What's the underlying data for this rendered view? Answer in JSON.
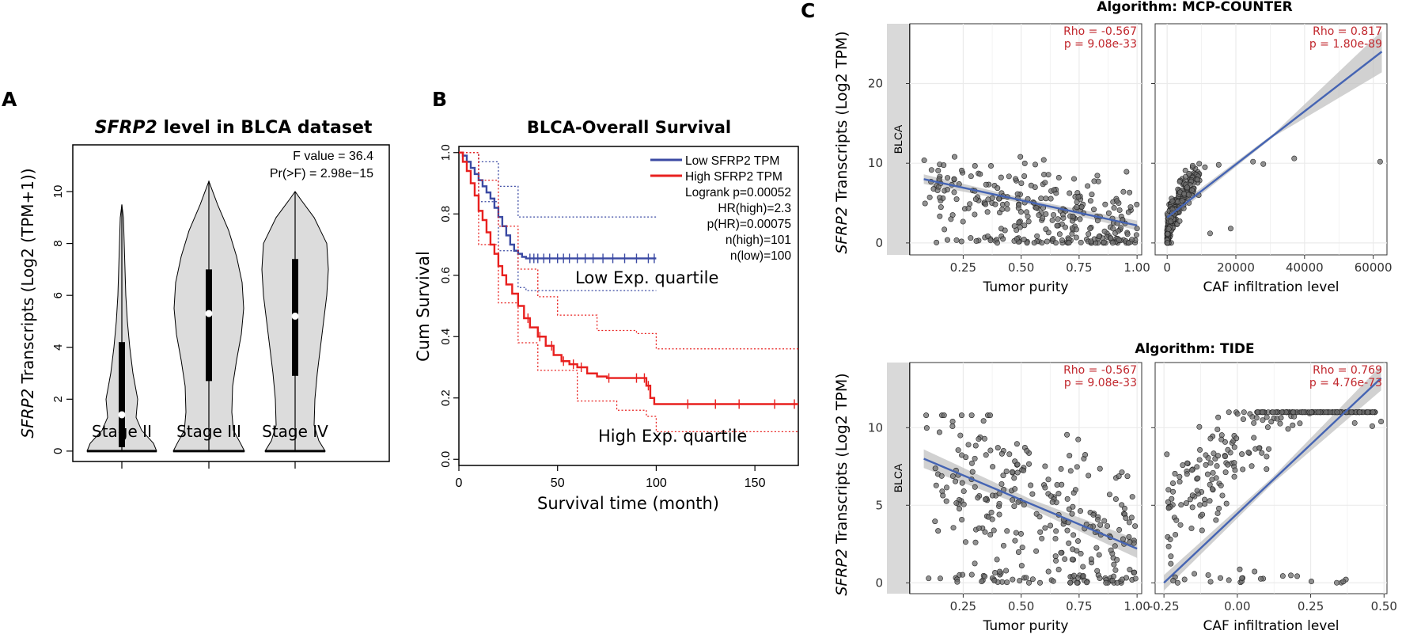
{
  "panel_labels": {
    "a": "A",
    "b": "B",
    "c": "C"
  },
  "colors": {
    "low": "#3b4aa3",
    "high": "#e8201f",
    "fit": "#4564b3",
    "stat": "#c1272d",
    "violin": "#dcdcdc",
    "grid": "#ebebeb",
    "strip": "#d9d9d9",
    "point": "#6e6e6e"
  },
  "chart_data": [
    {
      "id": "A",
      "type": "violin",
      "title_italic": "SFRP2",
      "title_rest": " level in BLCA dataset",
      "ylabel_italic": "SFRP2",
      "ylabel_rest": " Transcripts (Log2 (TPM+1))",
      "categories": [
        "Stage II",
        "Stage III",
        "Stage IV"
      ],
      "medians": [
        1.4,
        5.3,
        5.2
      ],
      "q1": [
        0.15,
        2.7,
        2.9
      ],
      "q3": [
        4.2,
        7.0,
        7.4
      ],
      "max": [
        9.5,
        10.4,
        10.0
      ],
      "min": [
        0,
        0,
        0
      ],
      "ylim": [
        -0.4,
        11.8
      ],
      "yticks": [
        0,
        2,
        4,
        6,
        8,
        10
      ],
      "stats": [
        "F value = 36.4",
        "Pr(>F) = 2.98e−15"
      ]
    },
    {
      "id": "B",
      "type": "line",
      "title": "BLCA-Overall Survival",
      "xlabel": "Survival time (month)",
      "ylabel": "Cum Survival",
      "xlim": [
        0,
        172
      ],
      "ylim": [
        -0.02,
        1.02
      ],
      "xticks": [
        0,
        50,
        100,
        150
      ],
      "yticks": [
        "0.0",
        "0.2",
        "0.4",
        "0.6",
        "0.8",
        "1.0"
      ],
      "legend": [
        "Low SFRP2 TPM",
        "High SFRP2 TPM"
      ],
      "stats": [
        "Logrank p=0.00052",
        "HR(high)=2.3",
        "p(HR)=0.00075",
        "n(high)=101",
        "n(low)=100"
      ],
      "annotations": [
        "Low Exp. quartile",
        "High Exp. quartile"
      ],
      "series": [
        {
          "name": "Low SFRP2 TPM",
          "x": [
            0,
            2,
            4,
            6,
            8,
            10,
            12,
            14,
            16,
            18,
            20,
            22,
            24,
            26,
            28,
            30,
            32,
            34,
            100
          ],
          "y": [
            1.0,
            0.99,
            0.97,
            0.95,
            0.93,
            0.91,
            0.89,
            0.87,
            0.85,
            0.82,
            0.79,
            0.76,
            0.73,
            0.7,
            0.68,
            0.67,
            0.66,
            0.655,
            0.655
          ],
          "ci_upper": [
            [
              0,
              1.0
            ],
            [
              10,
              0.97
            ],
            [
              20,
              0.89
            ],
            [
              30,
              0.79
            ],
            [
              100,
              0.79
            ]
          ],
          "ci_lower": [
            [
              0,
              1.0
            ],
            [
              10,
              0.84
            ],
            [
              20,
              0.68
            ],
            [
              30,
              0.56
            ],
            [
              34,
              0.55
            ],
            [
              100,
              0.55
            ]
          ],
          "censor": [
            36,
            38,
            40,
            43,
            46,
            50,
            53,
            56,
            60,
            64,
            68,
            73,
            78,
            84,
            90,
            96,
            99
          ]
        },
        {
          "name": "High SFRP2 TPM",
          "x": [
            0,
            2,
            4,
            6,
            8,
            10,
            12,
            14,
            16,
            18,
            20,
            22,
            24,
            27,
            30,
            33,
            36,
            40,
            44,
            48,
            52,
            56,
            60,
            65,
            70,
            75,
            80,
            85,
            90,
            95,
            97,
            99,
            172
          ],
          "y": [
            1.0,
            0.97,
            0.94,
            0.9,
            0.86,
            0.81,
            0.78,
            0.74,
            0.7,
            0.67,
            0.63,
            0.6,
            0.57,
            0.54,
            0.5,
            0.46,
            0.43,
            0.4,
            0.37,
            0.34,
            0.32,
            0.31,
            0.3,
            0.28,
            0.27,
            0.265,
            0.265,
            0.265,
            0.265,
            0.24,
            0.2,
            0.18,
            0.18
          ],
          "ci_upper": [
            [
              0,
              1.0
            ],
            [
              10,
              0.91
            ],
            [
              20,
              0.76
            ],
            [
              30,
              0.62
            ],
            [
              40,
              0.53
            ],
            [
              50,
              0.47
            ],
            [
              70,
              0.42
            ],
            [
              90,
              0.41
            ],
            [
              100,
              0.36
            ],
            [
              172,
              0.36
            ]
          ],
          "ci_lower": [
            [
              0,
              1.0
            ],
            [
              10,
              0.7
            ],
            [
              20,
              0.51
            ],
            [
              30,
              0.38
            ],
            [
              40,
              0.29
            ],
            [
              60,
              0.19
            ],
            [
              80,
              0.16
            ],
            [
              95,
              0.14
            ],
            [
              100,
              0.09
            ],
            [
              172,
              0.09
            ]
          ],
          "censor": [
            35,
            41,
            47,
            53,
            58,
            62,
            76,
            90,
            94,
            96,
            116,
            130,
            142,
            160,
            170
          ]
        }
      ]
    },
    {
      "id": "C",
      "type": "scatter",
      "ylabel_italic": "SFRP2",
      "ylabel_rest": " Transcripts (Log2 TPM)",
      "strip": "BLCA",
      "rows": [
        {
          "title": "Algorithm: MCP-COUNTER",
          "ylim": [
            -1.5,
            27.5
          ],
          "yticks": [
            0,
            10,
            20
          ],
          "panels": [
            {
              "xlabel": "Tumor purity",
              "xlim": [
                0.02,
                1.02
              ],
              "xticks": [
                "0.25",
                "0.50",
                "0.75",
                "1.00"
              ],
              "xtick_values": [
                0.25,
                0.5,
                0.75,
                1.0
              ],
              "rho": "Rho = -0.567",
              "p": "p = 9.08e-33",
              "fit": [
                [
                  0.08,
                  8.0
                ],
                [
                  1.0,
                  2.2
                ]
              ],
              "band": [
                0.6,
                0.3,
                0.6
              ],
              "cloud": {
                "n": 300,
                "x_range": [
                  0.08,
                  1.0
                ],
                "x_skew": 0.85,
                "y_intercept": 8.0,
                "y_slope": -5.8,
                "y_sd": 2.6,
                "floor_frac": 0.16,
                "y_max": 10.8,
                "seed": 11
              },
              "extra_points": []
            },
            {
              "xlabel": "CAF infiltration level",
              "xlim": [
                -3500,
                64000
              ],
              "xticks": [
                "0",
                "20000",
                "40000",
                "60000"
              ],
              "xtick_values": [
                0,
                20000,
                40000,
                60000
              ],
              "rho": "Rho = 0.817",
              "p": "p = 1.80e-89",
              "fit": [
                [
                  0,
                  3.2
                ],
                [
                  62500,
                  24.0
                ]
              ],
              "band": [
                0.5,
                0.2,
                2.6
              ],
              "cloud": {
                "n": 300,
                "x_range": [
                  0,
                  9500
                ],
                "x_skew": 2.2,
                "y_sqrt_coef": 0.085,
                "y_intercept": 0.3,
                "y_sd": 1.0,
                "floor_frac": 0.0,
                "y_max": 10.8,
                "seed": 23
              },
              "extra_points": [
                [
                  11000,
                  9.5
                ],
                [
                  12500,
                  1.2
                ],
                [
                  15000,
                  9.8
                ],
                [
                  18500,
                  1.8
                ],
                [
                  25000,
                  10.2
                ],
                [
                  28000,
                  9.9
                ],
                [
                  37000,
                  10.6
                ],
                [
                  62000,
                  10.2
                ]
              ]
            }
          ]
        },
        {
          "title": "Algorithm: TIDE",
          "ylim": [
            -0.7,
            14.2
          ],
          "yticks": [
            0,
            5,
            10
          ],
          "panels": [
            {
              "xlabel": "Tumor purity",
              "xlim": [
                0.02,
                1.02
              ],
              "xticks": [
                "0.25",
                "0.50",
                "0.75",
                "1.00"
              ],
              "xtick_values": [
                0.25,
                0.5,
                0.75,
                1.0
              ],
              "rho": "Rho = -0.567",
              "p": "p = 9.08e-33",
              "fit": [
                [
                  0.08,
                  8.0
                ],
                [
                  1.0,
                  2.2
                ]
              ],
              "band": [
                0.6,
                0.3,
                0.6
              ],
              "cloud": {
                "n": 300,
                "x_range": [
                  0.08,
                  1.0
                ],
                "x_skew": 0.85,
                "y_intercept": 8.0,
                "y_slope": -5.8,
                "y_sd": 2.6,
                "floor_frac": 0.16,
                "y_max": 10.8,
                "seed": 37
              },
              "extra_points": []
            },
            {
              "xlabel": "CAF infiltration level",
              "xlim": [
                -0.28,
                0.51
              ],
              "xticks": [
                "-0.25",
                "0.00",
                "0.25",
                "0.50"
              ],
              "xtick_values": [
                -0.25,
                0.0,
                0.25,
                0.5
              ],
              "rho": "Rho = 0.769",
              "p": "p = 4.76e-73",
              "fit": [
                [
                  -0.25,
                  0.0
                ],
                [
                  0.49,
                  13.2
                ]
              ],
              "band": [
                0.5,
                0.2,
                0.8
              ],
              "cloud": {
                "n": 300,
                "x_range": [
                  -0.25,
                  0.47
                ],
                "x_skew": 1.0,
                "y_intercept": 4.46,
                "y_slope": 17.8,
                "y_sd": 1.7,
                "floor_frac": 0.09,
                "y_max": 11.0,
                "seed": 53
              },
              "extra_points": [
                [
                  0.4,
                  10.3
                ],
                [
                  0.46,
                  10.1
                ],
                [
                  0.49,
                  10.4
                ]
              ]
            }
          ]
        }
      ]
    }
  ]
}
